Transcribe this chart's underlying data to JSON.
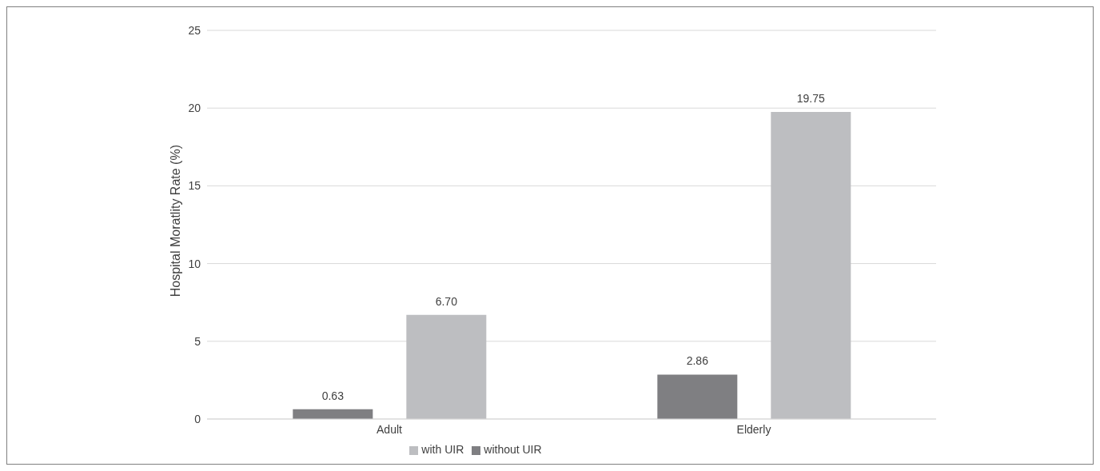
{
  "chart_data": {
    "type": "bar",
    "ylabel": "Hospital Moratlity Rate (%)",
    "categories": [
      "Adult",
      "Elderly"
    ],
    "series": [
      {
        "name": "without UIR",
        "color": "#7f7f82",
        "values": [
          0.63,
          2.86
        ],
        "value_labels": [
          "0.63",
          "2.86"
        ]
      },
      {
        "name": "with UIR",
        "color": "#bdbec1",
        "values": [
          6.7,
          19.75
        ],
        "value_labels": [
          "6.70",
          "19.75"
        ]
      }
    ],
    "ylim": [
      0,
      25
    ],
    "yticks": [
      0,
      5,
      10,
      15,
      20,
      25
    ],
    "grid": "y",
    "legend": "bottom"
  }
}
